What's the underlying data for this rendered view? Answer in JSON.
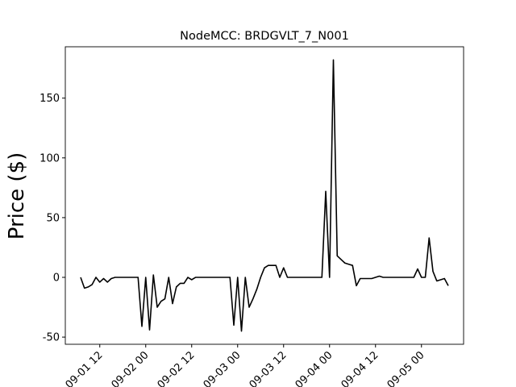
{
  "chart_data": {
    "type": "line",
    "title": "NodeMCC: BRDGVLT_7_N001",
    "y_label": "Price ($)",
    "color": "#000000",
    "x": [
      "09-01 07",
      "09-01 08",
      "09-01 09",
      "09-01 10",
      "09-01 11",
      "09-01 12",
      "09-01 13",
      "09-01 14",
      "09-01 15",
      "09-01 16",
      "09-01 17",
      "09-01 18",
      "09-01 19",
      "09-01 20",
      "09-01 21",
      "09-01 22",
      "09-01 23",
      "09-02 00",
      "09-02 01",
      "09-02 02",
      "09-02 03",
      "09-02 04",
      "09-02 05",
      "09-02 06",
      "09-02 07",
      "09-02 08",
      "09-02 09",
      "09-02 10",
      "09-02 11",
      "09-02 12",
      "09-02 13",
      "09-02 14",
      "09-02 15",
      "09-02 16",
      "09-02 17",
      "09-02 18",
      "09-02 19",
      "09-02 20",
      "09-02 21",
      "09-02 22",
      "09-02 23",
      "09-03 00",
      "09-03 01",
      "09-03 02",
      "09-03 03",
      "09-03 04",
      "09-03 05",
      "09-03 06",
      "09-03 07",
      "09-03 08",
      "09-03 09",
      "09-03 10",
      "09-03 11",
      "09-03 12",
      "09-03 13",
      "09-03 14",
      "09-03 15",
      "09-03 16",
      "09-03 17",
      "09-03 18",
      "09-03 19",
      "09-03 20",
      "09-03 21",
      "09-03 22",
      "09-03 23",
      "09-04 00",
      "09-04 01",
      "09-04 02",
      "09-04 03",
      "09-04 04",
      "09-04 05",
      "09-04 06",
      "09-04 07",
      "09-04 08",
      "09-04 09",
      "09-04 10",
      "09-04 11",
      "09-04 12",
      "09-04 13",
      "09-04 14",
      "09-04 15",
      "09-04 16",
      "09-04 17",
      "09-04 18",
      "09-04 19",
      "09-04 20",
      "09-04 21",
      "09-04 22",
      "09-04 23",
      "09-05 00",
      "09-05 01",
      "09-05 02",
      "09-05 03",
      "09-05 04",
      "09-05 05",
      "09-05 06",
      "09-05 07"
    ],
    "values": [
      0,
      -9,
      -8,
      -6,
      0,
      -4,
      -1,
      -4,
      -1,
      0,
      0,
      0,
      0,
      0,
      0,
      0,
      -41,
      0,
      -44,
      2,
      -25,
      -20,
      -18,
      0,
      -22,
      -8,
      -5,
      -5,
      0,
      -2,
      0,
      0,
      0,
      0,
      0,
      0,
      0,
      0,
      0,
      0,
      -40,
      0,
      -45,
      0,
      -25,
      -18,
      -10,
      0,
      8,
      10,
      10,
      10,
      0,
      8,
      0,
      0,
      0,
      0,
      0,
      0,
      0,
      0,
      0,
      0,
      72,
      0,
      182,
      18,
      15,
      12,
      11,
      10,
      -7,
      -1,
      -1,
      -1,
      -1,
      0,
      1,
      0,
      0,
      0,
      0,
      0,
      0,
      0,
      0,
      0,
      7,
      0,
      0,
      33,
      5,
      -3,
      -2,
      -1,
      -7
    ],
    "xlim": [
      "09-01 03",
      "09-05 11"
    ],
    "xticks": [
      "09-01 12",
      "09-02 00",
      "09-02 12",
      "09-03 00",
      "09-03 12",
      "09-04 00",
      "09-04 12",
      "09-05 00"
    ],
    "ylim": [
      -56,
      193
    ],
    "yticks": [
      -50,
      0,
      50,
      100,
      150
    ]
  }
}
